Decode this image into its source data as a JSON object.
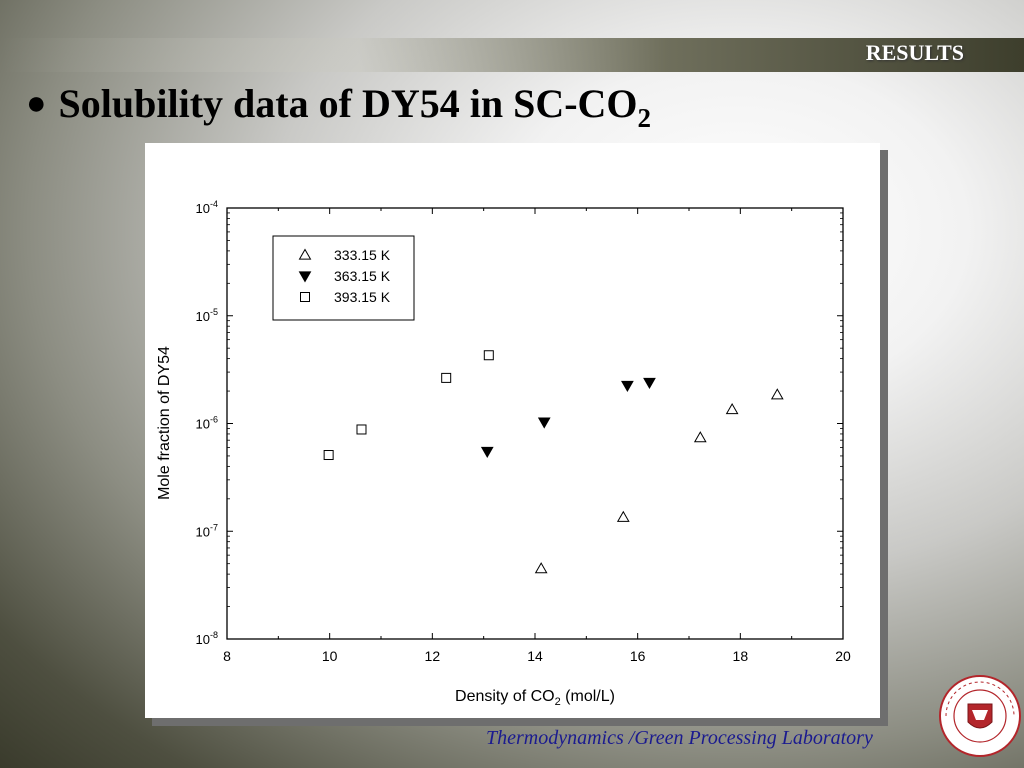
{
  "header": {
    "section_label": "RESULTS"
  },
  "slide": {
    "bullet": "●",
    "title_main": "Solubility data of DY54 in SC-CO",
    "title_sub": "2"
  },
  "footer": {
    "lab_name": "Thermodynamics /Green Processing Laboratory"
  },
  "chart_data": {
    "type": "scatter",
    "xlabel_main": "Density of CO",
    "xlabel_sub": "2",
    "xlabel_unit": " (mol/L)",
    "ylabel": "Mole fraction of DY54",
    "xlim": [
      8,
      20
    ],
    "ylim": [
      1e-08,
      0.0001
    ],
    "y_scale": "log",
    "x_ticks": [
      8,
      10,
      12,
      14,
      16,
      18,
      20
    ],
    "y_ticks": [
      {
        "exp": -8,
        "label_base": "10",
        "label_exp": "-8"
      },
      {
        "exp": -7,
        "label_base": "10",
        "label_exp": "-7"
      },
      {
        "exp": -6,
        "label_base": "10",
        "label_exp": "-6"
      },
      {
        "exp": -5,
        "label_base": "10",
        "label_exp": "-5"
      },
      {
        "exp": -4,
        "label_base": "10",
        "label_exp": "-4"
      }
    ],
    "grid": false,
    "legend_position": "top-left",
    "series": [
      {
        "name": "333.15 K",
        "marker": "open-triangle-up",
        "points": [
          {
            "x": 14.12,
            "y": 4.5e-08
          },
          {
            "x": 15.72,
            "y": 1.35e-07
          },
          {
            "x": 17.22,
            "y": 7.4e-07
          },
          {
            "x": 17.84,
            "y": 1.35e-06
          },
          {
            "x": 18.72,
            "y": 1.85e-06
          }
        ]
      },
      {
        "name": "363.15 K",
        "marker": "filled-triangle-down",
        "points": [
          {
            "x": 13.07,
            "y": 5.5e-07
          },
          {
            "x": 14.18,
            "y": 1.03e-06
          },
          {
            "x": 15.8,
            "y": 2.25e-06
          },
          {
            "x": 16.23,
            "y": 2.4e-06
          }
        ]
      },
      {
        "name": "393.15 K",
        "marker": "open-square",
        "points": [
          {
            "x": 9.98,
            "y": 5.1e-07
          },
          {
            "x": 10.62,
            "y": 8.8e-07
          },
          {
            "x": 12.27,
            "y": 2.65e-06
          },
          {
            "x": 13.1,
            "y": 4.3e-06
          }
        ]
      }
    ]
  },
  "colors": {
    "footer_text": "#1b1b8f",
    "results_text": "#ffffff",
    "logo_red": "#b3262b"
  },
  "icons": {
    "logo": "sogang-university-seal-icon"
  }
}
